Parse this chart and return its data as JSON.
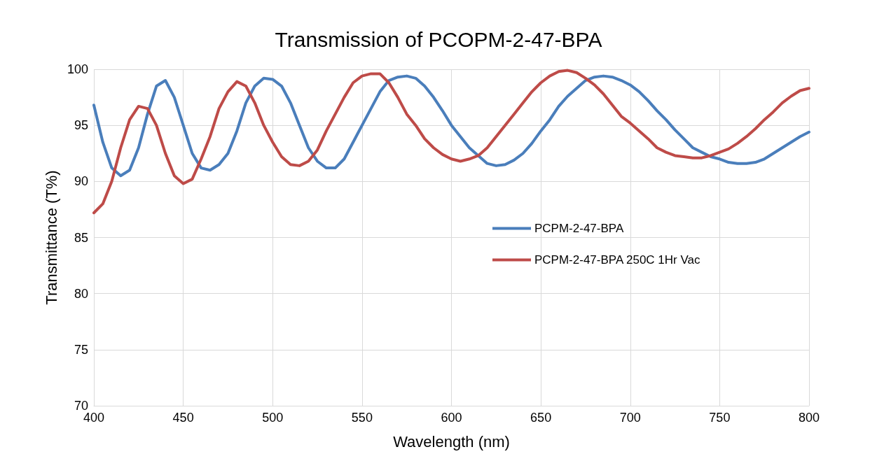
{
  "chart_data": {
    "type": "line",
    "title": "Transmission of PCOPM-2-47-BPA",
    "xlabel": "Wavelength (nm)",
    "ylabel": "Transmittance (T%)",
    "x": [
      400,
      405,
      410,
      415,
      420,
      425,
      430,
      435,
      440,
      445,
      450,
      455,
      460,
      465,
      470,
      475,
      480,
      485,
      490,
      495,
      500,
      505,
      510,
      515,
      520,
      525,
      530,
      535,
      540,
      545,
      550,
      555,
      560,
      565,
      570,
      575,
      580,
      585,
      590,
      595,
      600,
      605,
      610,
      615,
      620,
      625,
      630,
      635,
      640,
      645,
      650,
      655,
      660,
      665,
      670,
      675,
      680,
      685,
      690,
      695,
      700,
      705,
      710,
      715,
      720,
      725,
      730,
      735,
      740,
      745,
      750,
      755,
      760,
      765,
      770,
      775,
      780,
      785,
      790,
      795,
      800
    ],
    "series": [
      {
        "name": "PCPM-2-47-BPA",
        "color": "#4a7ebb",
        "values": [
          96.8,
          93.5,
          91.2,
          90.5,
          91,
          93,
          96,
          98.5,
          99,
          97.5,
          95,
          92.5,
          91.2,
          91,
          91.5,
          92.5,
          94.5,
          97,
          98.5,
          99.2,
          99.1,
          98.5,
          97,
          95,
          93,
          91.8,
          91.2,
          91.2,
          92,
          93.5,
          95,
          96.5,
          98,
          99,
          99.3,
          99.4,
          99.2,
          98.5,
          97.5,
          96.3,
          95,
          94,
          93,
          92.3,
          91.6,
          91.4,
          91.5,
          91.9,
          92.5,
          93.4,
          94.5,
          95.5,
          96.7,
          97.6,
          98.3,
          99,
          99.3,
          99.4,
          99.3,
          99,
          98.6,
          98,
          97.2,
          96.3,
          95.5,
          94.6,
          93.8,
          93,
          92.6,
          92.2,
          92,
          91.7,
          91.6,
          91.6,
          91.7,
          92,
          92.5,
          93,
          93.5,
          94,
          94.4
        ]
      },
      {
        "name": "PCPM-2-47-BPA 250C 1Hr Vac",
        "color": "#be4b48",
        "values": [
          87.2,
          88,
          90,
          93,
          95.5,
          96.7,
          96.5,
          95,
          92.5,
          90.5,
          89.8,
          90.2,
          92,
          94,
          96.5,
          98,
          98.9,
          98.5,
          97,
          95,
          93.5,
          92.2,
          91.5,
          91.4,
          91.8,
          92.8,
          94.5,
          96,
          97.5,
          98.8,
          99.4,
          99.6,
          99.6,
          98.8,
          97.5,
          96,
          95,
          93.8,
          93,
          92.4,
          92,
          91.8,
          92,
          92.3,
          93,
          94,
          95,
          96,
          97,
          98,
          98.8,
          99.4,
          99.8,
          99.9,
          99.7,
          99.2,
          98.6,
          97.8,
          96.8,
          95.8,
          95.2,
          94.5,
          93.8,
          93,
          92.6,
          92.3,
          92.2,
          92.1,
          92.1,
          92.3,
          92.6,
          92.9,
          93.4,
          94,
          94.7,
          95.5,
          96.2,
          97,
          97.6,
          98.1,
          98.3
        ]
      }
    ],
    "xlim": [
      400,
      800
    ],
    "xticks": [
      400,
      450,
      500,
      550,
      600,
      650,
      700,
      750,
      800
    ],
    "ylim": [
      70,
      100
    ],
    "yticks": [
      70,
      75,
      80,
      85,
      90,
      95,
      100
    ],
    "grid": true,
    "legend": "right",
    "marker": "none",
    "line_style": "solid"
  }
}
